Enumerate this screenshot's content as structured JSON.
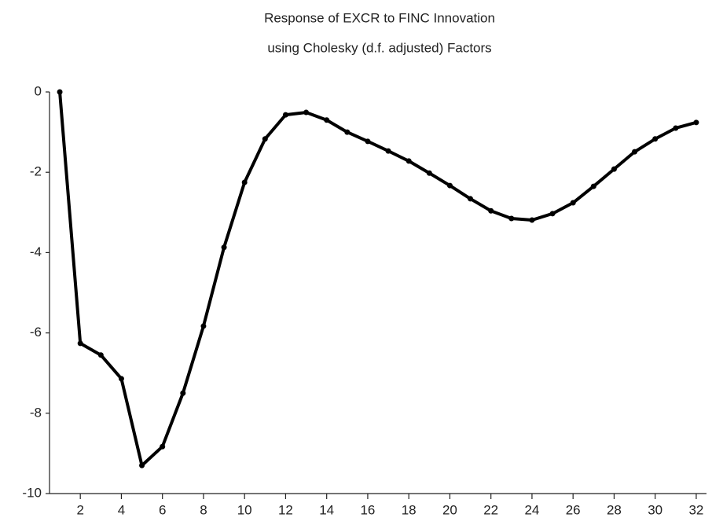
{
  "chart_data": {
    "type": "line",
    "title": "Response of EXCR to FINC Innovation",
    "subtitle": "using Cholesky (d.f. adjusted) Factors",
    "x": [
      1,
      2,
      3,
      4,
      5,
      6,
      7,
      8,
      9,
      10,
      11,
      12,
      13,
      14,
      15,
      16,
      17,
      18,
      19,
      20,
      21,
      22,
      23,
      24,
      25,
      26,
      27,
      28,
      29,
      30,
      31,
      32
    ],
    "series": [
      {
        "name": "EXCR",
        "color": "#000000",
        "values": [
          0,
          -6.26,
          -6.55,
          -7.14,
          -9.3,
          -8.83,
          -7.5,
          -5.83,
          -3.87,
          -2.25,
          -1.17,
          -0.57,
          -0.51,
          -0.7,
          -1.0,
          -1.23,
          -1.47,
          -1.72,
          -2.02,
          -2.33,
          -2.66,
          -2.96,
          -3.15,
          -3.19,
          -3.03,
          -2.76,
          -2.35,
          -1.92,
          -1.49,
          -1.17,
          -0.9,
          -0.76
        ]
      }
    ],
    "xlim": [
      0.5,
      32.5
    ],
    "xticks": [
      2,
      4,
      6,
      8,
      10,
      12,
      14,
      16,
      18,
      20,
      22,
      24,
      26,
      28,
      30,
      32
    ],
    "ylim": [
      -10,
      0
    ],
    "yticks": [
      0,
      -2,
      -4,
      -6,
      -8,
      -10
    ],
    "grid": false
  }
}
